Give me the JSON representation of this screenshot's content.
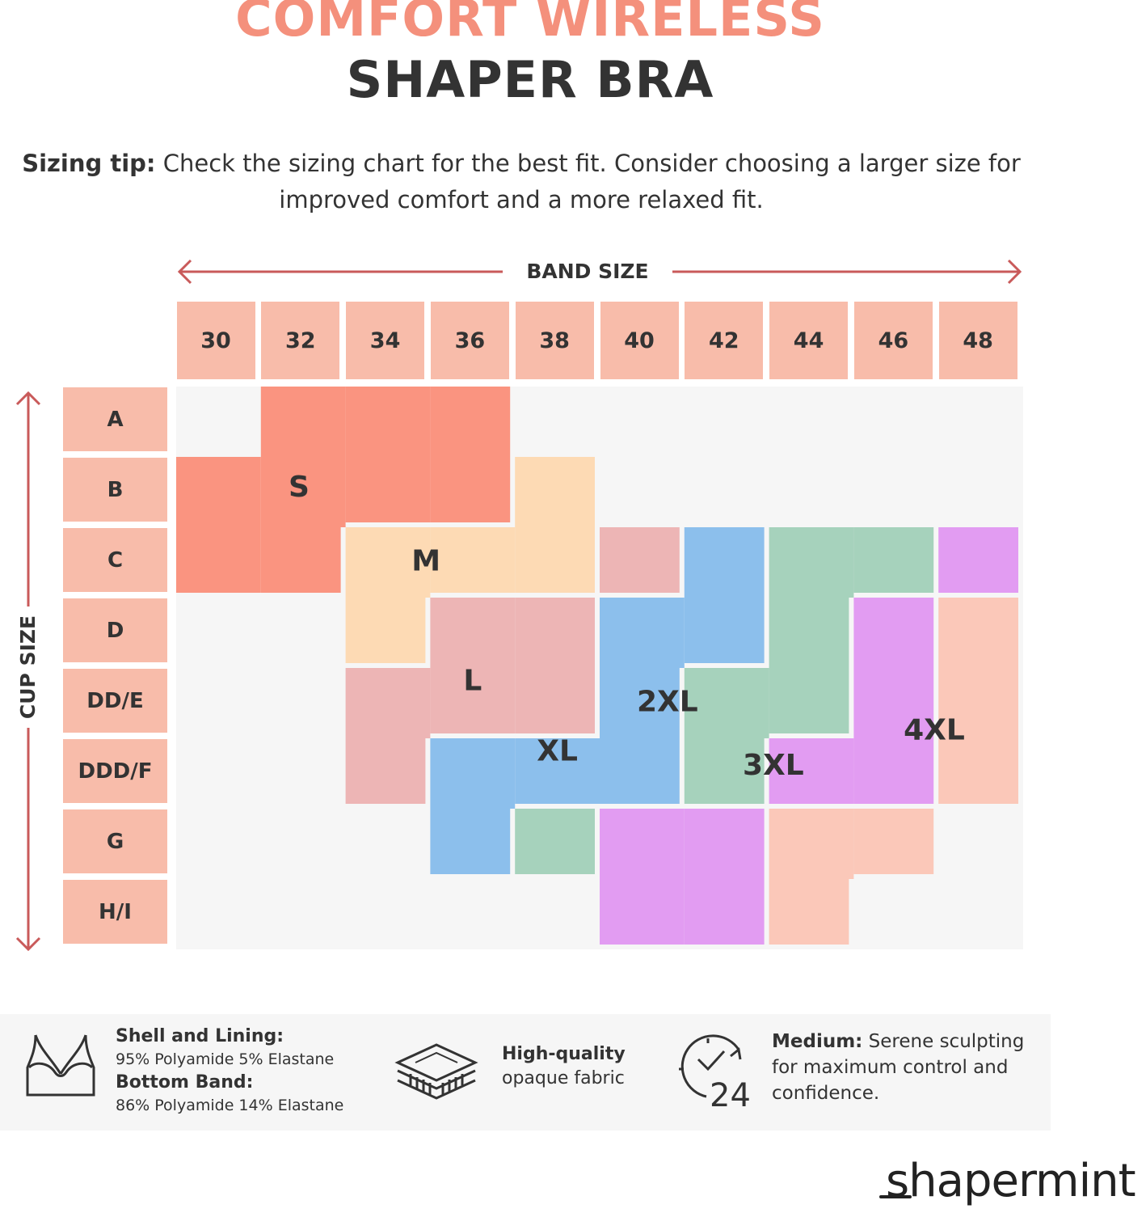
{
  "title": {
    "line1": "COMFORT WIRELESS",
    "line2": "SHAPER BRA"
  },
  "sizing_tip": {
    "label": "Sizing tip:",
    "text": " Check the sizing chart for the best fit. Consider choosing a larger size for improved comfort and a more relaxed fit."
  },
  "band_axis": {
    "label": "BAND SIZE",
    "values": [
      "30",
      "32",
      "34",
      "36",
      "38",
      "40",
      "42",
      "44",
      "46",
      "48"
    ]
  },
  "cup_axis": {
    "label": "CUP SIZE",
    "values": [
      "A",
      "B",
      "C",
      "D",
      "DD/E",
      "DDD/F",
      "G",
      "H/I"
    ]
  },
  "colors": {
    "header": "#f8bcaa",
    "grid": "#f6f6f6",
    "arrow": "#c95a5a",
    "S": "#fa9480",
    "M": "#fddab4",
    "L": "#edb5b5",
    "XL": "#8cbfec",
    "2XL": "#a6d2bc",
    "3XL": "#e29cf2",
    "4XL": "#fbc8b9"
  },
  "chart_data": {
    "type": "table",
    "band_sizes": [
      "30",
      "32",
      "34",
      "36",
      "38",
      "40",
      "42",
      "44",
      "46",
      "48"
    ],
    "cup_sizes": [
      "A",
      "B",
      "C",
      "D",
      "DD/E",
      "DDD/F",
      "G",
      "H/I"
    ],
    "sizes": [
      {
        "name": "S",
        "cells": [
          [
            "A",
            "32"
          ],
          [
            "A",
            "34"
          ],
          [
            "A",
            "36"
          ],
          [
            "B",
            "30"
          ],
          [
            "B",
            "32"
          ],
          [
            "B",
            "34"
          ],
          [
            "B",
            "36"
          ],
          [
            "C",
            "30"
          ],
          [
            "C",
            "32"
          ]
        ]
      },
      {
        "name": "M",
        "cells": [
          [
            "B",
            "38"
          ],
          [
            "C",
            "34"
          ],
          [
            "C",
            "36"
          ],
          [
            "C",
            "38"
          ],
          [
            "D",
            "34"
          ]
        ]
      },
      {
        "name": "L",
        "cells": [
          [
            "C",
            "40"
          ],
          [
            "D",
            "36"
          ],
          [
            "D",
            "38"
          ],
          [
            "DD/E",
            "34"
          ],
          [
            "DD/E",
            "36"
          ],
          [
            "DD/E",
            "38"
          ],
          [
            "DDD/F",
            "34"
          ]
        ]
      },
      {
        "name": "XL",
        "cells": [
          [
            "C",
            "42"
          ],
          [
            "D",
            "40"
          ],
          [
            "D",
            "42"
          ],
          [
            "DD/E",
            "40"
          ],
          [
            "DDD/F",
            "36"
          ],
          [
            "DDD/F",
            "38"
          ],
          [
            "DDD/F",
            "40"
          ],
          [
            "G",
            "36"
          ]
        ]
      },
      {
        "name": "2XL",
        "cells": [
          [
            "C",
            "44"
          ],
          [
            "C",
            "46"
          ],
          [
            "D",
            "44"
          ],
          [
            "DD/E",
            "42"
          ],
          [
            "DD/E",
            "44"
          ],
          [
            "DDD/F",
            "42"
          ],
          [
            "G",
            "38"
          ]
        ]
      },
      {
        "name": "3XL",
        "cells": [
          [
            "C",
            "48"
          ],
          [
            "D",
            "46"
          ],
          [
            "DD/E",
            "46"
          ],
          [
            "DDD/F",
            "44"
          ],
          [
            "DDD/F",
            "46"
          ],
          [
            "G",
            "40"
          ],
          [
            "G",
            "42"
          ],
          [
            "H/I",
            "40"
          ],
          [
            "H/I",
            "42"
          ]
        ]
      },
      {
        "name": "4XL",
        "cells": [
          [
            "D",
            "48"
          ],
          [
            "DD/E",
            "48"
          ],
          [
            "DDD/F",
            "48"
          ],
          [
            "G",
            "44"
          ],
          [
            "G",
            "46"
          ],
          [
            "H/I",
            "44"
          ]
        ]
      }
    ]
  },
  "features": {
    "shell_heading": "Shell and Lining:",
    "shell_value": "95% Polyamide 5% Elastane",
    "band_heading": "Bottom Band:",
    "band_value": "86% Polyamide 14% Elastane",
    "fabric_heading": "High-quality",
    "fabric_value": "opaque fabric",
    "clock_number": "24",
    "medium_label": "Medium:",
    "medium_line1": " Serene sculpting",
    "medium_line2": "for maximum control and",
    "medium_line3": "confidence."
  },
  "icons": [
    "bra-icon",
    "fabric-layers-icon",
    "clock-24-icon"
  ],
  "brand": {
    "logo": "shapermint"
  }
}
